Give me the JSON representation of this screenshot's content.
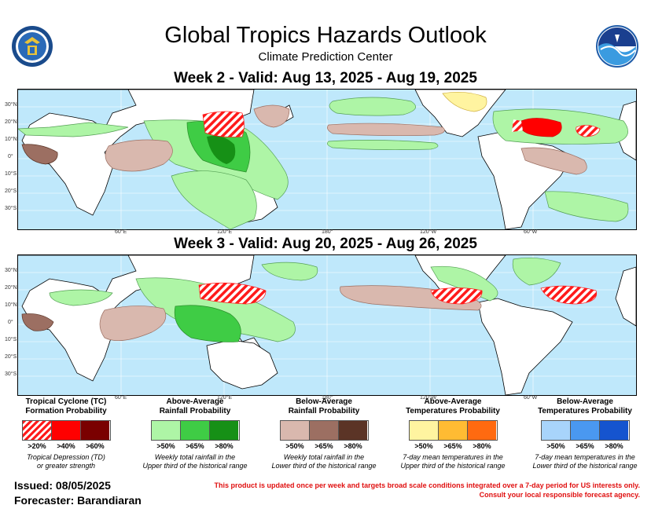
{
  "header": {
    "title": "Global Tropics Hazards Outlook",
    "subtitle": "Climate Prediction Center"
  },
  "week2": {
    "title": "Week 2 - Valid: Aug 13, 2025 - Aug 19, 2025"
  },
  "week3": {
    "title": "Week 3 - Valid: Aug 20, 2025 - Aug 26, 2025"
  },
  "map_axes": {
    "lat_labels": [
      "30°N",
      "20°N",
      "10°N",
      "0°",
      "10°S",
      "20°S",
      "30°S"
    ],
    "lon_labels": [
      "60°E",
      "120°E",
      "180°",
      "120°W",
      "60°W"
    ]
  },
  "legends": [
    {
      "title_line1": "Tropical Cyclone (TC)",
      "title_line2": "Formation Probability",
      "labels": [
        ">20%",
        ">40%",
        ">60%"
      ],
      "colors": [
        "hatched-red",
        "#ff0000",
        "#7a0000"
      ],
      "note_line1": "Tropical Depression (TD)",
      "note_line2": "or greater strength"
    },
    {
      "title_line1": "Above-Average",
      "title_line2": "Rainfall Probability",
      "labels": [
        ">50%",
        ">65%",
        ">80%"
      ],
      "colors": [
        "#aef5a6",
        "#3fcc45",
        "#169016"
      ],
      "note_line1": "Weekly total rainfall in the",
      "note_line2": "Upper third of the historical range"
    },
    {
      "title_line1": "Below-Average",
      "title_line2": "Rainfall Probability",
      "labels": [
        ">50%",
        ">65%",
        ">80%"
      ],
      "colors": [
        "#d9b8ae",
        "#9c6f62",
        "#5b3426"
      ],
      "note_line1": "Weekly total rainfall in the",
      "note_line2": "Lower third of the historical range"
    },
    {
      "title_line1": "Above-Average",
      "title_line2": "Temperatures Probability",
      "labels": [
        ">50%",
        ">65%",
        ">80%"
      ],
      "colors": [
        "#fff4a0",
        "#ffbb33",
        "#ff6a10"
      ],
      "note_line1": "7-day mean temperatures in the",
      "note_line2": "Upper third of the historical range"
    },
    {
      "title_line1": "Below-Average",
      "title_line2": "Temperatures Probability",
      "labels": [
        ">50%",
        ">65%",
        ">80%"
      ],
      "colors": [
        "#a8d4fb",
        "#4a98f0",
        "#1554cf"
      ],
      "note_line1": "7-day mean temperatures in the",
      "note_line2": "Lower third of the historical range"
    }
  ],
  "footer": {
    "issued": "Issued: 08/05/2025",
    "forecaster": "Forecaster: Barandiaran",
    "disclaimer_line1": "This product is updated once per week and targets broad scale conditions integrated over a 7-day period for US interests only.",
    "disclaimer_line2": "Consult your local responsible forecast agency."
  }
}
